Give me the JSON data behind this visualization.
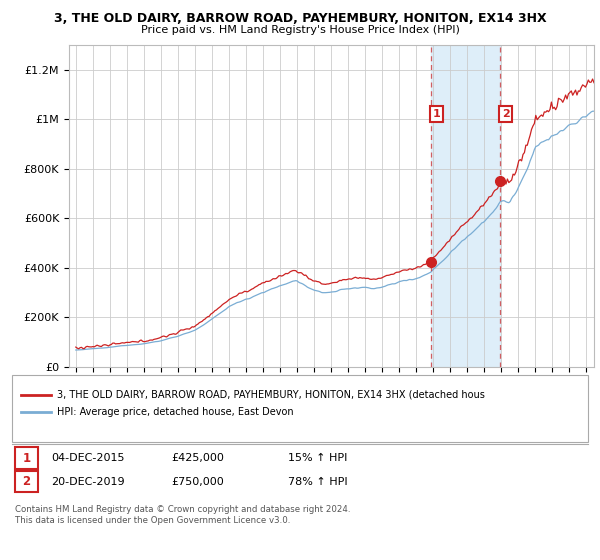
{
  "title1": "3, THE OLD DAIRY, BARROW ROAD, PAYHEMBURY, HONITON, EX14 3HX",
  "title2": "Price paid vs. HM Land Registry's House Price Index (HPI)",
  "ylim": [
    0,
    1300000
  ],
  "yticks": [
    0,
    200000,
    400000,
    600000,
    800000,
    1000000,
    1200000
  ],
  "ytick_labels": [
    "£0",
    "£200K",
    "£400K",
    "£600K",
    "£800K",
    "£1M",
    "£1.2M"
  ],
  "background_color": "#ffffff",
  "plot_bg_color": "#ffffff",
  "grid_color": "#cccccc",
  "hpi_line_color": "#7aadd4",
  "price_line_color": "#cc2222",
  "sale1_year": 2015.92,
  "sale1_price": 425000,
  "sale2_year": 2019.97,
  "sale2_price": 750000,
  "legend_label1": "3, THE OLD DAIRY, BARROW ROAD, PAYHEMBURY, HONITON, EX14 3HX (detached hous",
  "legend_label2": "HPI: Average price, detached house, East Devon",
  "table_row1": [
    "1",
    "04-DEC-2015",
    "£425,000",
    "15% ↑ HPI"
  ],
  "table_row2": [
    "2",
    "20-DEC-2019",
    "£750,000",
    "78% ↑ HPI"
  ],
  "footer": "Contains HM Land Registry data © Crown copyright and database right 2024.\nThis data is licensed under the Open Government Licence v3.0.",
  "shaded_region_color": "#d6eaf8",
  "annotation_edge_color": "#cc2222"
}
